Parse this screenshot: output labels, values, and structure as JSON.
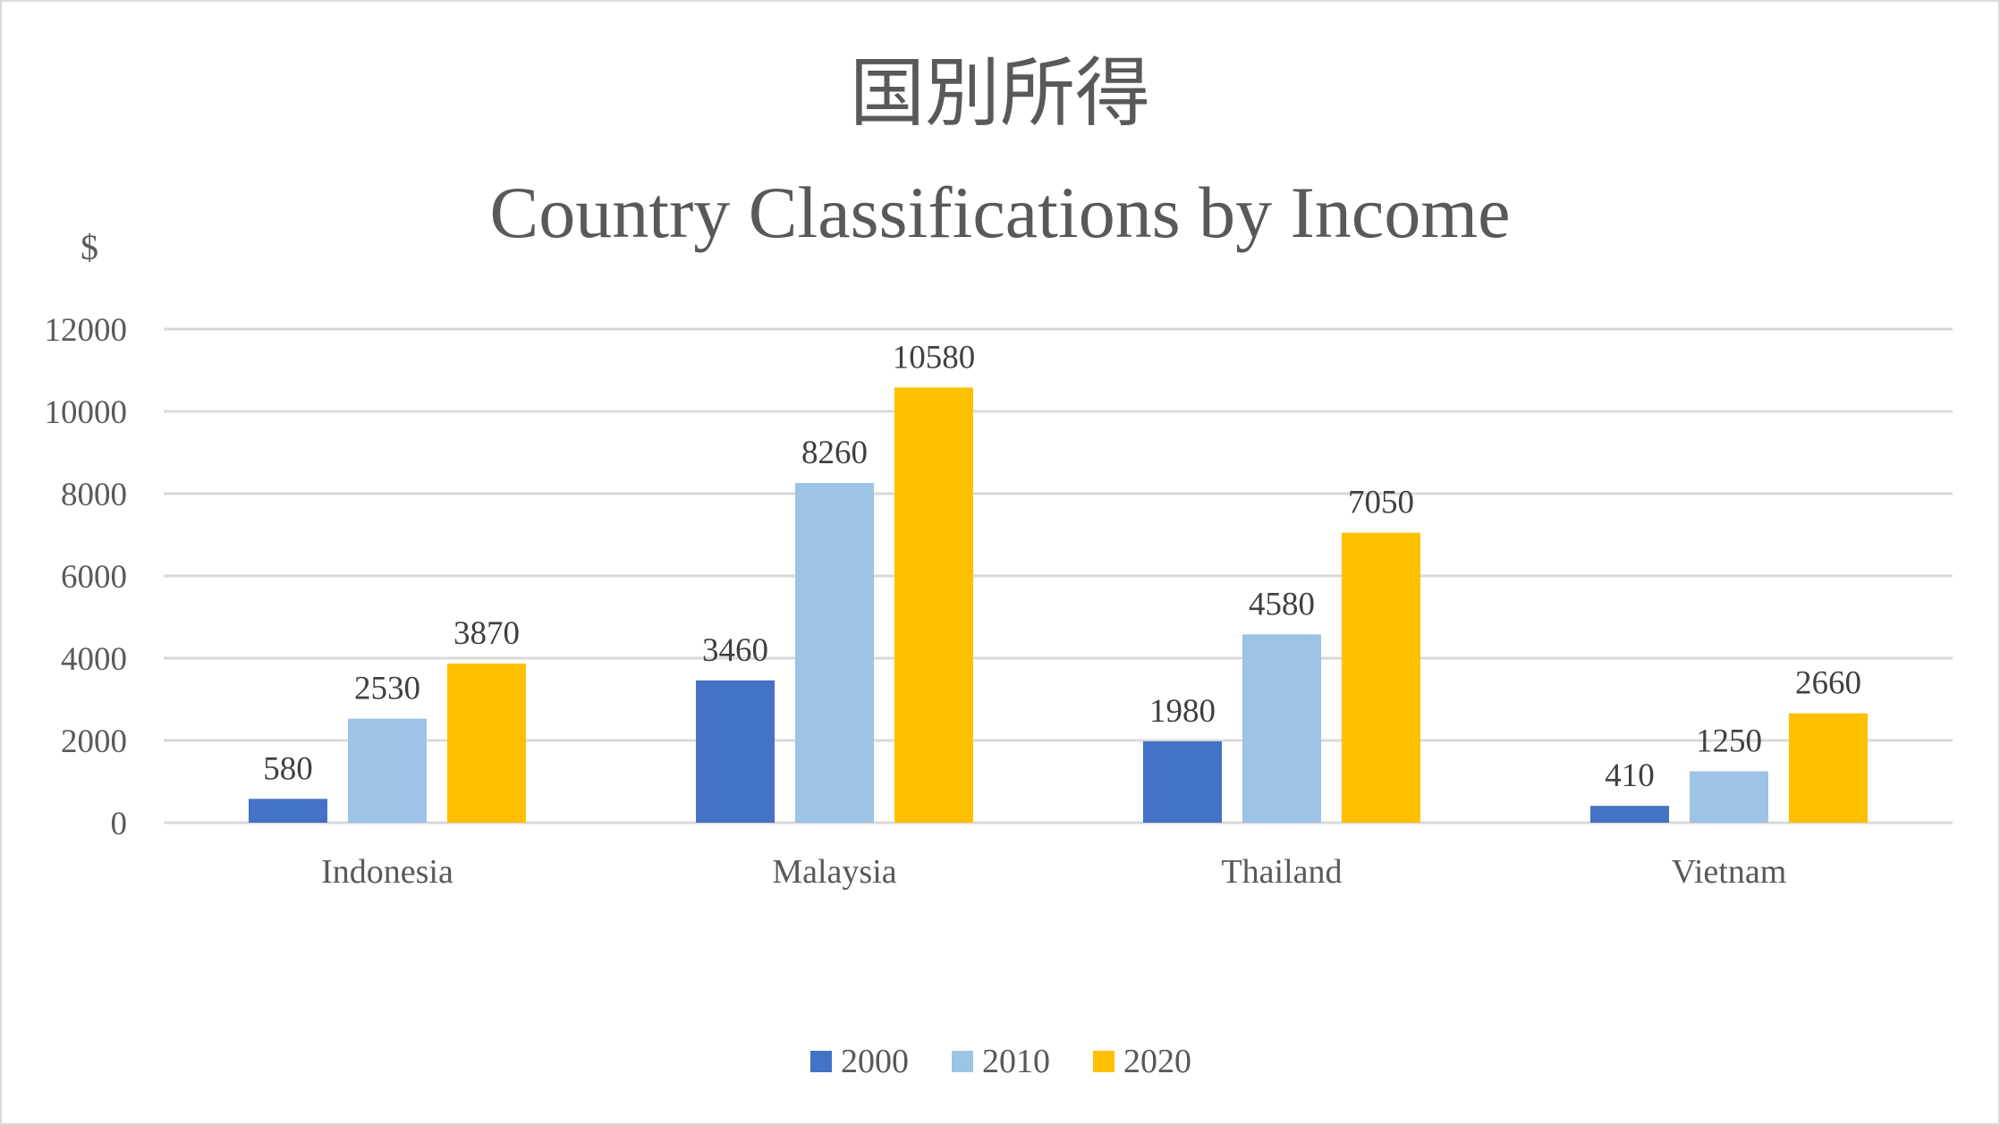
{
  "chart_data": {
    "type": "bar",
    "title": "国別所得",
    "subtitle": "Country Classifications by Income",
    "ylabel": "$",
    "xlabel": "",
    "ylim": [
      0,
      12000
    ],
    "yticks": [
      0,
      2000,
      4000,
      6000,
      8000,
      10000,
      12000
    ],
    "grid": true,
    "legend": "bottom",
    "categories": [
      "Indonesia",
      "Malaysia",
      "Thailand",
      "Vietnam"
    ],
    "series": [
      {
        "name": "2000",
        "color": "#4472C4",
        "values": [
          580,
          3460,
          1980,
          410
        ]
      },
      {
        "name": "2010",
        "color": "#9DC3E6",
        "values": [
          2530,
          8260,
          4580,
          1250
        ]
      },
      {
        "name": "2020",
        "color": "#FFC000",
        "values": [
          3870,
          10580,
          7050,
          2660
        ]
      }
    ]
  }
}
